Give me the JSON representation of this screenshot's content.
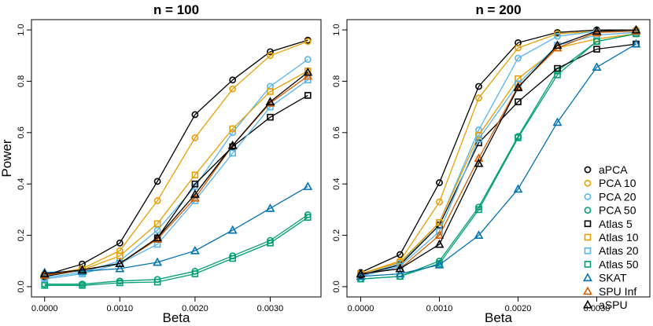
{
  "chart_data": [
    {
      "type": "line",
      "title": "n = 100",
      "xlabel": "Beta",
      "ylabel": "Power",
      "x": [
        0.0,
        0.0005,
        0.001,
        0.0015,
        0.002,
        0.0025,
        0.003,
        0.0035
      ],
      "xticks": [
        0.0,
        0.001,
        0.002,
        0.003
      ],
      "xtick_labels": [
        "0.0000",
        "0.0010",
        "0.0020",
        "0.0030"
      ],
      "yticks": [
        0.0,
        0.2,
        0.4,
        0.6,
        0.8,
        1.0
      ],
      "ytick_labels": [
        "0.0",
        "0.2",
        "0.4",
        "0.6",
        "0.8",
        "1.0"
      ],
      "ylim": [
        0,
        1
      ],
      "series": [
        {
          "name": "aPCA",
          "color": "#000000",
          "marker": "circle",
          "values": [
            0.045,
            0.088,
            0.17,
            0.41,
            0.67,
            0.805,
            0.915,
            0.96
          ]
        },
        {
          "name": "PCA 10",
          "color": "#E69F00",
          "marker": "circle",
          "values": [
            0.045,
            0.07,
            0.14,
            0.335,
            0.58,
            0.77,
            0.9,
            0.955
          ]
        },
        {
          "name": "PCA 20",
          "color": "#56B4E9",
          "marker": "circle",
          "values": [
            0.035,
            0.055,
            0.1,
            0.22,
            0.39,
            0.6,
            0.78,
            0.885
          ]
        },
        {
          "name": "PCA 50",
          "color": "#009E73",
          "marker": "circle",
          "values": [
            0.01,
            0.01,
            0.022,
            0.028,
            0.06,
            0.12,
            0.18,
            0.28
          ]
        },
        {
          "name": "Atlas 5",
          "color": "#000000",
          "marker": "square",
          "values": [
            0.04,
            0.065,
            0.09,
            0.19,
            0.4,
            0.545,
            0.66,
            0.745
          ]
        },
        {
          "name": "Atlas 10",
          "color": "#E69F00",
          "marker": "square",
          "values": [
            0.045,
            0.065,
            0.12,
            0.245,
            0.435,
            0.615,
            0.76,
            0.84
          ]
        },
        {
          "name": "Atlas 20",
          "color": "#56B4E9",
          "marker": "square",
          "values": [
            0.03,
            0.05,
            0.09,
            0.165,
            0.335,
            0.52,
            0.7,
            0.805
          ]
        },
        {
          "name": "Atlas 50",
          "color": "#009E73",
          "marker": "square",
          "values": [
            0.005,
            0.005,
            0.015,
            0.018,
            0.05,
            0.11,
            0.17,
            0.27
          ]
        },
        {
          "name": "SKAT",
          "color": "#0072B2",
          "marker": "triangle",
          "values": [
            0.055,
            0.06,
            0.07,
            0.095,
            0.14,
            0.22,
            0.305,
            0.39
          ]
        },
        {
          "name": "SPU Inf",
          "color": "#D55E00",
          "marker": "triangle",
          "values": [
            0.045,
            0.065,
            0.09,
            0.185,
            0.345,
            0.55,
            0.715,
            0.82
          ]
        },
        {
          "name": "aSPU",
          "color": "#000000",
          "marker": "triangle",
          "values": [
            0.05,
            0.065,
            0.09,
            0.19,
            0.36,
            0.55,
            0.72,
            0.835
          ]
        }
      ]
    },
    {
      "type": "line",
      "title": "n = 200",
      "xlabel": "Beta",
      "ylabel": "",
      "x": [
        0.0,
        0.0005,
        0.001,
        0.0015,
        0.002,
        0.0025,
        0.003,
        0.0035
      ],
      "xticks": [
        0.0,
        0.001,
        0.002,
        0.003
      ],
      "xtick_labels": [
        "0.0000",
        "0.0010",
        "0.0020",
        "0.0030"
      ],
      "yticks": [
        0.0,
        0.2,
        0.4,
        0.6,
        0.8,
        1.0
      ],
      "ytick_labels": [
        "0.0",
        "0.2",
        "0.4",
        "0.6",
        "0.8",
        "1.0"
      ],
      "ylim": [
        0,
        1
      ],
      "legend_position": "bottom-right",
      "series": [
        {
          "name": "aPCA",
          "color": "#000000",
          "marker": "circle",
          "values": [
            0.055,
            0.125,
            0.405,
            0.78,
            0.95,
            0.99,
            1.0,
            1.0
          ]
        },
        {
          "name": "PCA 10",
          "color": "#E69F00",
          "marker": "circle",
          "values": [
            0.05,
            0.1,
            0.33,
            0.735,
            0.93,
            0.985,
            0.995,
            1.0
          ]
        },
        {
          "name": "PCA 20",
          "color": "#56B4E9",
          "marker": "circle",
          "values": [
            0.045,
            0.09,
            0.25,
            0.61,
            0.89,
            0.975,
            0.995,
            0.995
          ]
        },
        {
          "name": "PCA 50",
          "color": "#009E73",
          "marker": "circle",
          "values": [
            0.03,
            0.04,
            0.1,
            0.31,
            0.585,
            0.84,
            0.955,
            0.985
          ]
        },
        {
          "name": "Atlas 5",
          "color": "#000000",
          "marker": "square",
          "values": [
            0.045,
            0.085,
            0.24,
            0.56,
            0.72,
            0.85,
            0.925,
            0.945
          ]
        },
        {
          "name": "Atlas 10",
          "color": "#E69F00",
          "marker": "square",
          "values": [
            0.05,
            0.095,
            0.25,
            0.59,
            0.81,
            0.93,
            0.965,
            0.985
          ]
        },
        {
          "name": "Atlas 20",
          "color": "#56B4E9",
          "marker": "square",
          "values": [
            0.04,
            0.08,
            0.215,
            0.575,
            0.79,
            0.94,
            0.98,
            0.99
          ]
        },
        {
          "name": "Atlas 50",
          "color": "#009E73",
          "marker": "square",
          "values": [
            0.03,
            0.04,
            0.09,
            0.3,
            0.58,
            0.825,
            0.955,
            0.985
          ]
        },
        {
          "name": "SKAT",
          "color": "#0072B2",
          "marker": "triangle",
          "values": [
            0.04,
            0.05,
            0.085,
            0.2,
            0.38,
            0.64,
            0.855,
            0.945
          ]
        },
        {
          "name": "SPU Inf",
          "color": "#D55E00",
          "marker": "triangle",
          "values": [
            0.05,
            0.07,
            0.2,
            0.5,
            0.78,
            0.93,
            0.99,
            0.995
          ]
        },
        {
          "name": "aSPU",
          "color": "#000000",
          "marker": "triangle",
          "values": [
            0.05,
            0.07,
            0.165,
            0.48,
            0.775,
            0.94,
            0.995,
            1.0
          ]
        }
      ]
    }
  ]
}
